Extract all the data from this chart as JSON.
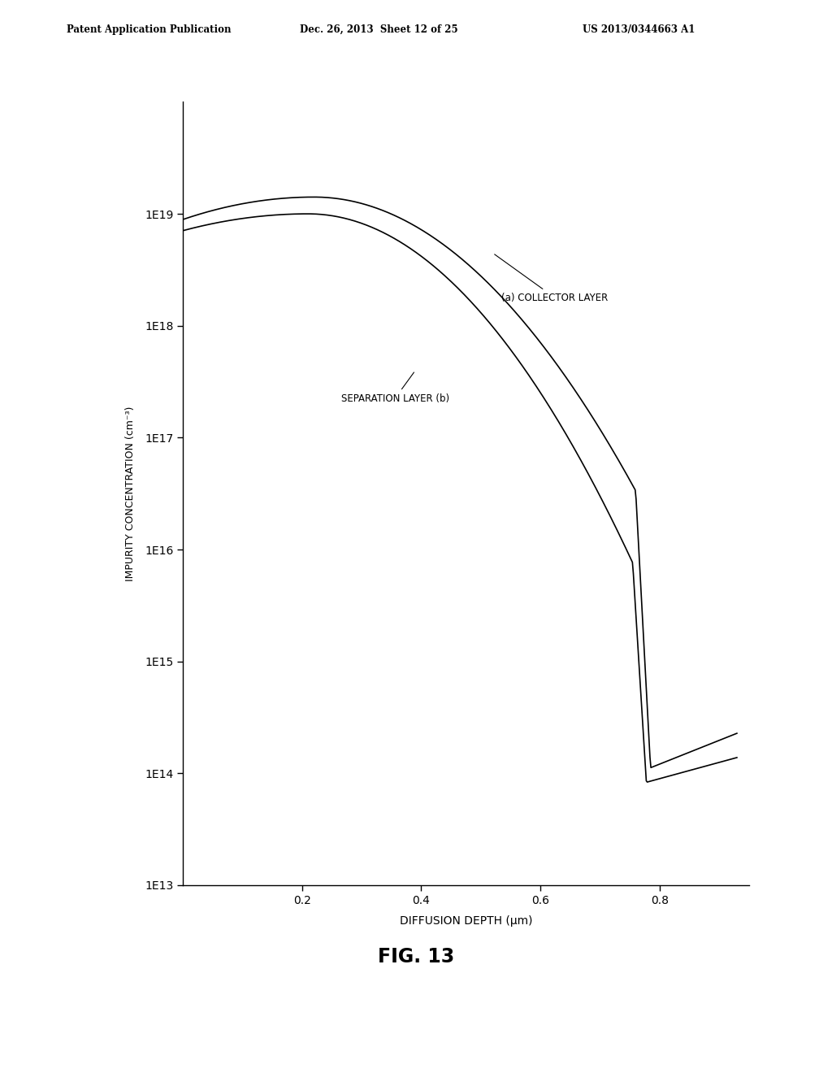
{
  "header_left": "Patent Application Publication",
  "header_mid": "Dec. 26, 2013  Sheet 12 of 25",
  "header_right": "US 2013/0344663 A1",
  "fig_label": "FIG. 13",
  "xlabel": "DIFFUSION DEPTH (μm)",
  "ylabel": "IMPURITY CONCENTRATION (cm⁻³)",
  "xlim": [
    0,
    0.95
  ],
  "xticks": [
    0.2,
    0.4,
    0.6,
    0.8
  ],
  "ytick_labels": [
    "1E13",
    "1E14",
    "1E15",
    "1E16",
    "1E17",
    "1E18",
    "1E19"
  ],
  "ytick_values": [
    13,
    14,
    15,
    16,
    17,
    18,
    19
  ],
  "ylim_log_min": 13.0,
  "ylim_log_max": 20.0,
  "line_color": "#000000",
  "bg_color": "#ffffff",
  "annotation_a": "(a) COLLECTOR LAYER",
  "annotation_b": "SEPARATION LAYER (b)"
}
